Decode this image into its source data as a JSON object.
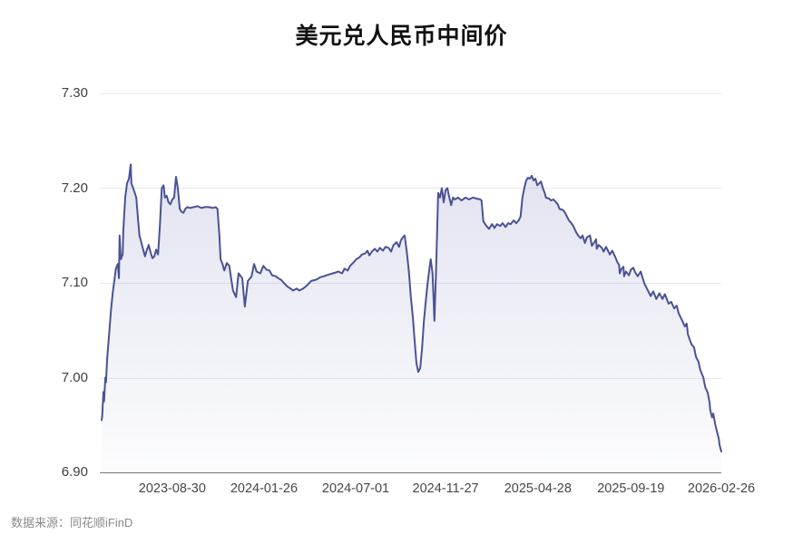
{
  "chart_data": {
    "type": "area",
    "title": "美元兑人民币中间价",
    "source_note": "数据来源：同花顺iFinD",
    "ylim": [
      6.9,
      7.3
    ],
    "y_ticks": [
      "7.30",
      "7.20",
      "7.10",
      "7.00",
      "6.90"
    ],
    "x_ticks": [
      {
        "label": "2023-08-30",
        "f": 0.114
      },
      {
        "label": "2024-01-26",
        "f": 0.262
      },
      {
        "label": "2024-07-01",
        "f": 0.41
      },
      {
        "label": "2024-11-27",
        "f": 0.555
      },
      {
        "label": "2025-04-28",
        "f": 0.704
      },
      {
        "label": "2025-09-19",
        "f": 0.854
      },
      {
        "label": "2026-02-26",
        "f": 1.0
      }
    ],
    "grid": true,
    "legend": "none",
    "colors": {
      "line": "#4a5294",
      "fill_top": "rgba(106,116,178,0.20)",
      "fill_bottom": "rgba(106,116,178,0.02)",
      "gridline": "#e5e8ef",
      "axis_line": "#777777"
    },
    "series_name": "美元兑人民币中间价",
    "points": [
      [
        0.0,
        6.955
      ],
      [
        0.001,
        6.96
      ],
      [
        0.003,
        6.985
      ],
      [
        0.004,
        6.975
      ],
      [
        0.006,
        7.0
      ],
      [
        0.007,
        6.995
      ],
      [
        0.009,
        7.02
      ],
      [
        0.012,
        7.045
      ],
      [
        0.015,
        7.07
      ],
      [
        0.018,
        7.09
      ],
      [
        0.02,
        7.1
      ],
      [
        0.023,
        7.115
      ],
      [
        0.026,
        7.12
      ],
      [
        0.028,
        7.105
      ],
      [
        0.029,
        7.15
      ],
      [
        0.031,
        7.125
      ],
      [
        0.034,
        7.13
      ],
      [
        0.035,
        7.155
      ],
      [
        0.038,
        7.19
      ],
      [
        0.041,
        7.205
      ],
      [
        0.044,
        7.21
      ],
      [
        0.047,
        7.225
      ],
      [
        0.048,
        7.205
      ],
      [
        0.051,
        7.2
      ],
      [
        0.056,
        7.19
      ],
      [
        0.059,
        7.165
      ],
      [
        0.061,
        7.15
      ],
      [
        0.064,
        7.143
      ],
      [
        0.067,
        7.135
      ],
      [
        0.07,
        7.128
      ],
      [
        0.073,
        7.135
      ],
      [
        0.076,
        7.14
      ],
      [
        0.079,
        7.132
      ],
      [
        0.082,
        7.126
      ],
      [
        0.085,
        7.128
      ],
      [
        0.088,
        7.135
      ],
      [
        0.091,
        7.13
      ],
      [
        0.094,
        7.16
      ],
      [
        0.097,
        7.2
      ],
      [
        0.1,
        7.203
      ],
      [
        0.102,
        7.19
      ],
      [
        0.105,
        7.192
      ],
      [
        0.108,
        7.185
      ],
      [
        0.111,
        7.183
      ],
      [
        0.114,
        7.188
      ],
      [
        0.117,
        7.19
      ],
      [
        0.12,
        7.212
      ],
      [
        0.123,
        7.2
      ],
      [
        0.126,
        7.178
      ],
      [
        0.129,
        7.175
      ],
      [
        0.132,
        7.174
      ],
      [
        0.135,
        7.178
      ],
      [
        0.138,
        7.18
      ],
      [
        0.143,
        7.179
      ],
      [
        0.149,
        7.18
      ],
      [
        0.155,
        7.181
      ],
      [
        0.161,
        7.179
      ],
      [
        0.167,
        7.18
      ],
      [
        0.173,
        7.18
      ],
      [
        0.179,
        7.179
      ],
      [
        0.184,
        7.18
      ],
      [
        0.187,
        7.178
      ],
      [
        0.19,
        7.15
      ],
      [
        0.192,
        7.125
      ],
      [
        0.195,
        7.12
      ],
      [
        0.198,
        7.113
      ],
      [
        0.202,
        7.121
      ],
      [
        0.206,
        7.118
      ],
      [
        0.209,
        7.105
      ],
      [
        0.212,
        7.092
      ],
      [
        0.217,
        7.085
      ],
      [
        0.221,
        7.11
      ],
      [
        0.227,
        7.105
      ],
      [
        0.231,
        7.075
      ],
      [
        0.236,
        7.102
      ],
      [
        0.242,
        7.107
      ],
      [
        0.246,
        7.12
      ],
      [
        0.25,
        7.112
      ],
      [
        0.256,
        7.11
      ],
      [
        0.261,
        7.118
      ],
      [
        0.266,
        7.114
      ],
      [
        0.271,
        7.113
      ],
      [
        0.275,
        7.108
      ],
      [
        0.281,
        7.107
      ],
      [
        0.285,
        7.105
      ],
      [
        0.29,
        7.103
      ],
      [
        0.294,
        7.1
      ],
      [
        0.3,
        7.096
      ],
      [
        0.305,
        7.094
      ],
      [
        0.309,
        7.092
      ],
      [
        0.315,
        7.094
      ],
      [
        0.319,
        7.092
      ],
      [
        0.325,
        7.094
      ],
      [
        0.329,
        7.096
      ],
      [
        0.334,
        7.099
      ],
      [
        0.338,
        7.102
      ],
      [
        0.344,
        7.103
      ],
      [
        0.348,
        7.104
      ],
      [
        0.353,
        7.106
      ],
      [
        0.359,
        7.107
      ],
      [
        0.363,
        7.108
      ],
      [
        0.368,
        7.109
      ],
      [
        0.373,
        7.11
      ],
      [
        0.378,
        7.111
      ],
      [
        0.382,
        7.112
      ],
      [
        0.388,
        7.11
      ],
      [
        0.392,
        7.115
      ],
      [
        0.397,
        7.113
      ],
      [
        0.401,
        7.118
      ],
      [
        0.407,
        7.122
      ],
      [
        0.411,
        7.125
      ],
      [
        0.416,
        7.127
      ],
      [
        0.42,
        7.13
      ],
      [
        0.425,
        7.131
      ],
      [
        0.429,
        7.134
      ],
      [
        0.432,
        7.129
      ],
      [
        0.436,
        7.133
      ],
      [
        0.441,
        7.136
      ],
      [
        0.445,
        7.133
      ],
      [
        0.449,
        7.137
      ],
      [
        0.454,
        7.134
      ],
      [
        0.458,
        7.138
      ],
      [
        0.463,
        7.137
      ],
      [
        0.467,
        7.133
      ],
      [
        0.471,
        7.14
      ],
      [
        0.476,
        7.143
      ],
      [
        0.48,
        7.138
      ],
      [
        0.483,
        7.145
      ],
      [
        0.486,
        7.148
      ],
      [
        0.489,
        7.15
      ],
      [
        0.493,
        7.13
      ],
      [
        0.496,
        7.11
      ],
      [
        0.499,
        7.085
      ],
      [
        0.502,
        7.065
      ],
      [
        0.505,
        7.04
      ],
      [
        0.508,
        7.015
      ],
      [
        0.511,
        7.006
      ],
      [
        0.514,
        7.01
      ],
      [
        0.517,
        7.03
      ],
      [
        0.52,
        7.06
      ],
      [
        0.523,
        7.08
      ],
      [
        0.526,
        7.1
      ],
      [
        0.529,
        7.115
      ],
      [
        0.531,
        7.125
      ],
      [
        0.534,
        7.11
      ],
      [
        0.537,
        7.06
      ],
      [
        0.54,
        7.12
      ],
      [
        0.543,
        7.195
      ],
      [
        0.546,
        7.19
      ],
      [
        0.549,
        7.2
      ],
      [
        0.552,
        7.185
      ],
      [
        0.555,
        7.198
      ],
      [
        0.558,
        7.2
      ],
      [
        0.561,
        7.19
      ],
      [
        0.564,
        7.182
      ],
      [
        0.567,
        7.19
      ],
      [
        0.57,
        7.188
      ],
      [
        0.575,
        7.19
      ],
      [
        0.581,
        7.187
      ],
      [
        0.587,
        7.19
      ],
      [
        0.593,
        7.188
      ],
      [
        0.599,
        7.19
      ],
      [
        0.605,
        7.189
      ],
      [
        0.611,
        7.188
      ],
      [
        0.613,
        7.187
      ],
      [
        0.616,
        7.165
      ],
      [
        0.621,
        7.16
      ],
      [
        0.625,
        7.157
      ],
      [
        0.63,
        7.162
      ],
      [
        0.634,
        7.158
      ],
      [
        0.638,
        7.162
      ],
      [
        0.643,
        7.16
      ],
      [
        0.647,
        7.163
      ],
      [
        0.652,
        7.159
      ],
      [
        0.656,
        7.163
      ],
      [
        0.66,
        7.162
      ],
      [
        0.665,
        7.166
      ],
      [
        0.669,
        7.163
      ],
      [
        0.673,
        7.166
      ],
      [
        0.676,
        7.17
      ],
      [
        0.679,
        7.19
      ],
      [
        0.682,
        7.2
      ],
      [
        0.685,
        7.208
      ],
      [
        0.688,
        7.211
      ],
      [
        0.691,
        7.21
      ],
      [
        0.694,
        7.213
      ],
      [
        0.697,
        7.208
      ],
      [
        0.7,
        7.21
      ],
      [
        0.703,
        7.203
      ],
      [
        0.706,
        7.205
      ],
      [
        0.709,
        7.207
      ],
      [
        0.712,
        7.2
      ],
      [
        0.715,
        7.195
      ],
      [
        0.717,
        7.19
      ],
      [
        0.722,
        7.189
      ],
      [
        0.725,
        7.187
      ],
      [
        0.729,
        7.188
      ],
      [
        0.732,
        7.186
      ],
      [
        0.736,
        7.183
      ],
      [
        0.739,
        7.178
      ],
      [
        0.744,
        7.177
      ],
      [
        0.747,
        7.175
      ],
      [
        0.751,
        7.17
      ],
      [
        0.754,
        7.166
      ],
      [
        0.758,
        7.163
      ],
      [
        0.761,
        7.16
      ],
      [
        0.766,
        7.153
      ],
      [
        0.769,
        7.15
      ],
      [
        0.773,
        7.147
      ],
      [
        0.776,
        7.15
      ],
      [
        0.78,
        7.142
      ],
      [
        0.783,
        7.148
      ],
      [
        0.788,
        7.15
      ],
      [
        0.791,
        7.139
      ],
      [
        0.795,
        7.143
      ],
      [
        0.798,
        7.146
      ],
      [
        0.799,
        7.136
      ],
      [
        0.802,
        7.14
      ],
      [
        0.807,
        7.137
      ],
      [
        0.81,
        7.133
      ],
      [
        0.814,
        7.138
      ],
      [
        0.82,
        7.13
      ],
      [
        0.824,
        7.134
      ],
      [
        0.829,
        7.127
      ],
      [
        0.832,
        7.122
      ],
      [
        0.835,
        7.119
      ],
      [
        0.836,
        7.11
      ],
      [
        0.839,
        7.115
      ],
      [
        0.842,
        7.117
      ],
      [
        0.843,
        7.107
      ],
      [
        0.846,
        7.112
      ],
      [
        0.851,
        7.108
      ],
      [
        0.854,
        7.114
      ],
      [
        0.858,
        7.116
      ],
      [
        0.861,
        7.111
      ],
      [
        0.865,
        7.107
      ],
      [
        0.87,
        7.112
      ],
      [
        0.873,
        7.105
      ],
      [
        0.876,
        7.099
      ],
      [
        0.88,
        7.094
      ],
      [
        0.883,
        7.09
      ],
      [
        0.886,
        7.086
      ],
      [
        0.89,
        7.091
      ],
      [
        0.895,
        7.083
      ],
      [
        0.9,
        7.089
      ],
      [
        0.905,
        7.083
      ],
      [
        0.909,
        7.088
      ],
      [
        0.915,
        7.078
      ],
      [
        0.919,
        7.08
      ],
      [
        0.924,
        7.073
      ],
      [
        0.928,
        7.076
      ],
      [
        0.931,
        7.068
      ],
      [
        0.934,
        7.064
      ],
      [
        0.937,
        7.06
      ],
      [
        0.941,
        7.054
      ],
      [
        0.944,
        7.057
      ],
      [
        0.946,
        7.046
      ],
      [
        0.949,
        7.04
      ],
      [
        0.952,
        7.035
      ],
      [
        0.956,
        7.032
      ],
      [
        0.959,
        7.022
      ],
      [
        0.963,
        7.017
      ],
      [
        0.966,
        7.008
      ],
      [
        0.971,
        7.0
      ],
      [
        0.974,
        6.99
      ],
      [
        0.978,
        6.984
      ],
      [
        0.981,
        6.974
      ],
      [
        0.982,
        6.966
      ],
      [
        0.985,
        6.958
      ],
      [
        0.987,
        6.962
      ],
      [
        0.99,
        6.951
      ],
      [
        0.993,
        6.943
      ],
      [
        0.996,
        6.935
      ],
      [
        0.997,
        6.929
      ],
      [
        1.0,
        6.922
      ]
    ]
  }
}
